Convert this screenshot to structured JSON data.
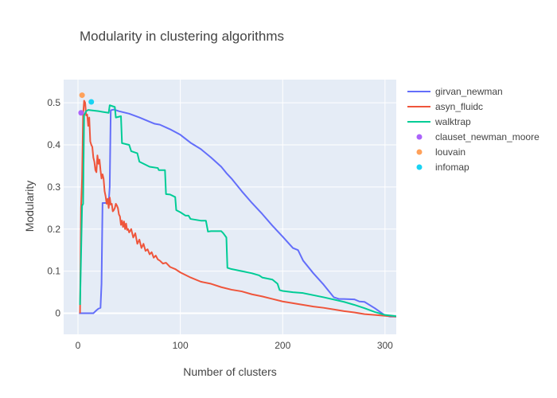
{
  "chart_data": {
    "type": "line",
    "title": "Modularity in clustering algorithms",
    "xlabel": "Number of clusters",
    "ylabel": "Modularity",
    "xlim": [
      -14,
      311
    ],
    "ylim": [
      -0.05,
      0.555
    ],
    "xticks": [
      0,
      100,
      200,
      300
    ],
    "yticks": [
      0,
      0.1,
      0.2,
      0.3,
      0.4,
      0.5
    ],
    "ytick_labels": [
      "0",
      "0.1",
      "0.2",
      "0.3",
      "0.4",
      "0.5"
    ],
    "grid": true,
    "legend_position": "right",
    "series": [
      {
        "name": "girvan_newman",
        "mode": "lines",
        "color": "#636efa",
        "x": [
          1,
          15,
          18,
          20,
          22,
          23,
          24,
          30,
          31,
          32,
          35,
          40,
          50,
          60,
          70,
          75,
          80,
          90,
          100,
          110,
          120,
          130,
          140,
          145,
          150,
          160,
          170,
          180,
          190,
          200,
          210,
          215,
          220,
          230,
          240,
          250,
          255,
          260,
          270,
          275,
          280,
          290,
          300,
          305,
          311
        ],
        "y": [
          0,
          0,
          0.007,
          0.011,
          0.013,
          0.07,
          0.262,
          0.262,
          0.3,
          0.482,
          0.484,
          0.48,
          0.474,
          0.465,
          0.455,
          0.45,
          0.448,
          0.437,
          0.424,
          0.405,
          0.39,
          0.37,
          0.348,
          0.333,
          0.32,
          0.29,
          0.262,
          0.236,
          0.208,
          0.182,
          0.155,
          0.15,
          0.125,
          0.095,
          0.068,
          0.038,
          0.034,
          0.034,
          0.033,
          0.028,
          0.027,
          0.012,
          -0.005,
          -0.008,
          -0.008
        ]
      },
      {
        "name": "asyn_fluidc",
        "mode": "lines",
        "color": "#ef553b",
        "x": [
          2,
          3,
          4,
          5,
          6,
          7,
          8,
          9,
          10,
          11,
          12,
          13,
          14,
          15,
          16,
          17,
          18,
          19,
          20,
          21,
          22,
          23,
          24,
          25,
          26,
          27,
          28,
          29,
          30,
          31,
          32,
          33,
          34,
          35,
          36,
          37,
          38,
          39,
          40,
          41,
          42,
          43,
          44,
          45,
          46,
          47,
          48,
          49,
          50,
          52,
          54,
          56,
          58,
          60,
          62,
          64,
          66,
          68,
          70,
          72,
          74,
          76,
          78,
          80,
          83,
          86,
          90,
          95,
          100,
          110,
          120,
          130,
          140,
          150,
          160,
          170,
          180,
          190,
          200,
          210,
          220,
          230,
          240,
          250,
          260,
          270,
          280,
          290,
          300,
          311
        ],
        "y": [
          0.0,
          0.25,
          0.32,
          0.47,
          0.505,
          0.5,
          0.47,
          0.472,
          0.445,
          0.465,
          0.408,
          0.4,
          0.395,
          0.37,
          0.36,
          0.34,
          0.335,
          0.375,
          0.355,
          0.365,
          0.34,
          0.32,
          0.33,
          0.32,
          0.29,
          0.278,
          0.26,
          0.272,
          0.25,
          0.275,
          0.258,
          0.26,
          0.242,
          0.245,
          0.25,
          0.26,
          0.256,
          0.25,
          0.235,
          0.23,
          0.21,
          0.22,
          0.205,
          0.218,
          0.2,
          0.213,
          0.198,
          0.2,
          0.192,
          0.2,
          0.18,
          0.19,
          0.165,
          0.175,
          0.155,
          0.165,
          0.148,
          0.152,
          0.14,
          0.145,
          0.132,
          0.137,
          0.128,
          0.125,
          0.118,
          0.12,
          0.11,
          0.105,
          0.097,
          0.085,
          0.075,
          0.07,
          0.062,
          0.056,
          0.052,
          0.045,
          0.04,
          0.034,
          0.028,
          0.024,
          0.02,
          0.016,
          0.013,
          0.009,
          0.005,
          0.002,
          -0.002,
          -0.004,
          -0.006,
          -0.008
        ]
      },
      {
        "name": "walktrap",
        "mode": "lines",
        "color": "#00cc96",
        "x": [
          2,
          4,
          5,
          6,
          8,
          10,
          20,
          30,
          31,
          36,
          37,
          42,
          43,
          50,
          52,
          58,
          60,
          70,
          78,
          79,
          85,
          86,
          90,
          95,
          96,
          100,
          105,
          108,
          110,
          120,
          125,
          127,
          130,
          140,
          142,
          145,
          146,
          150,
          160,
          170,
          177,
          180,
          190,
          195,
          197,
          200,
          210,
          220,
          240,
          260,
          270,
          280,
          290,
          300,
          311
        ],
        "y": [
          0.02,
          0.255,
          0.26,
          0.47,
          0.48,
          0.483,
          0.48,
          0.476,
          0.494,
          0.49,
          0.465,
          0.468,
          0.404,
          0.4,
          0.385,
          0.38,
          0.36,
          0.348,
          0.345,
          0.34,
          0.34,
          0.283,
          0.282,
          0.276,
          0.245,
          0.24,
          0.232,
          0.232,
          0.224,
          0.22,
          0.22,
          0.194,
          0.195,
          0.195,
          0.19,
          0.18,
          0.108,
          0.105,
          0.1,
          0.095,
          0.09,
          0.085,
          0.08,
          0.07,
          0.055,
          0.053,
          0.05,
          0.048,
          0.038,
          0.027,
          0.02,
          0.012,
          0.003,
          -0.004,
          -0.007
        ]
      },
      {
        "name": "clauset_newman_moore",
        "mode": "markers",
        "color": "#ab63fa",
        "x": [
          3
        ],
        "y": [
          0.476
        ]
      },
      {
        "name": "louvain",
        "mode": "markers",
        "color": "#ffa15a",
        "x": [
          4
        ],
        "y": [
          0.518
        ]
      },
      {
        "name": "infomap",
        "mode": "markers",
        "color": "#19d3f3",
        "x": [
          13
        ],
        "y": [
          0.502
        ]
      }
    ]
  }
}
